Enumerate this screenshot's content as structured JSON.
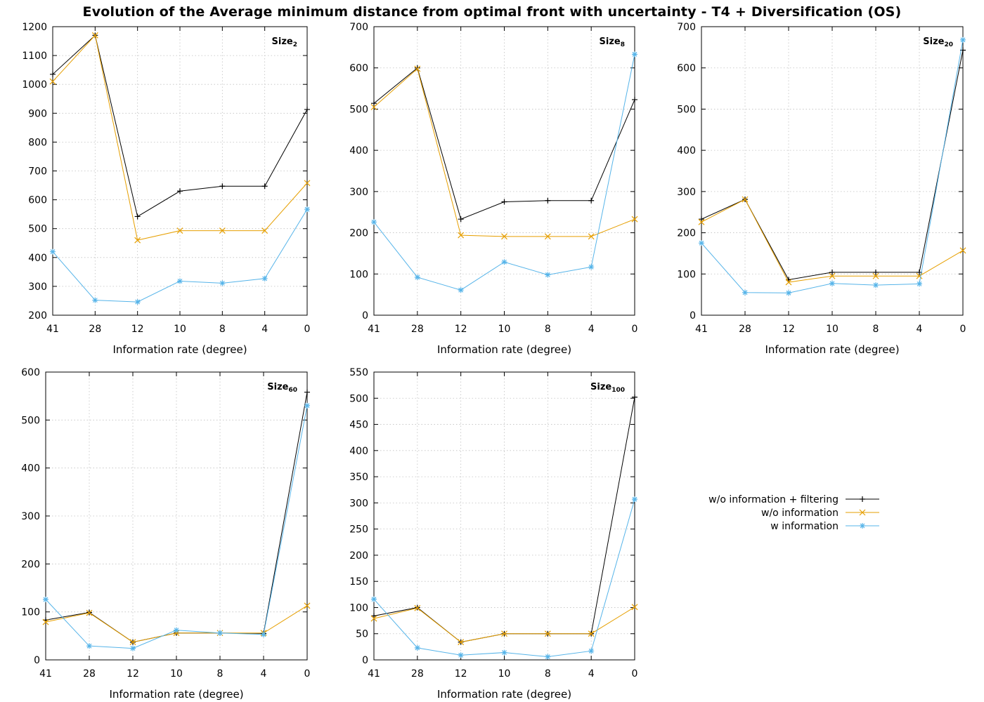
{
  "title": "Evolution of the Average minimum distance from optimal front with uncertainty  - T4  + Diversification (OS)",
  "colors": {
    "filtering": "#000000",
    "wo_info": "#E69F00",
    "w_info": "#56B4E9",
    "grid": "#c0c0c0"
  },
  "legend": [
    {
      "label": "w/o information + filtering",
      "color": "#000000",
      "marker": "plus"
    },
    {
      "label": "w/o information",
      "color": "#E69F00",
      "marker": "cross"
    },
    {
      "label": "w information",
      "color": "#56B4E9",
      "marker": "star"
    }
  ],
  "chart_data": [
    {
      "type": "line",
      "size_label": "Size",
      "size_sub": "2",
      "categories": [
        "41",
        "28",
        "12",
        "10",
        "8",
        "4",
        "0"
      ],
      "xlabel": "Information rate (degree)",
      "ylabel": "",
      "ylim": [
        200,
        1200
      ],
      "yticks": [
        200,
        300,
        400,
        500,
        600,
        700,
        800,
        900,
        1000,
        1100,
        1200
      ],
      "series": [
        {
          "name": "w/o information + filtering",
          "values": [
            1035,
            1170,
            542,
            630,
            647,
            647,
            913
          ]
        },
        {
          "name": "w/o information",
          "values": [
            1010,
            1170,
            460,
            493,
            493,
            493,
            658
          ]
        },
        {
          "name": "w information",
          "values": [
            420,
            252,
            246,
            318,
            311,
            327,
            567
          ]
        }
      ]
    },
    {
      "type": "line",
      "size_label": "Size",
      "size_sub": "8",
      "categories": [
        "41",
        "28",
        "12",
        "10",
        "8",
        "4",
        "0"
      ],
      "xlabel": "Information rate (degree)",
      "ylabel": "",
      "ylim": [
        0,
        700
      ],
      "yticks": [
        0,
        100,
        200,
        300,
        400,
        500,
        600,
        700
      ],
      "series": [
        {
          "name": "w/o information + filtering",
          "values": [
            514,
            600,
            233,
            275,
            278,
            278,
            523
          ]
        },
        {
          "name": "w/o information",
          "values": [
            505,
            598,
            194,
            191,
            191,
            191,
            233
          ]
        },
        {
          "name": "w information",
          "values": [
            226,
            92,
            61,
            129,
            98,
            117,
            633
          ]
        }
      ]
    },
    {
      "type": "line",
      "size_label": "Size",
      "size_sub": "20",
      "categories": [
        "41",
        "28",
        "12",
        "10",
        "8",
        "4",
        "0"
      ],
      "xlabel": "Information rate (degree)",
      "ylabel": "",
      "ylim": [
        0,
        700
      ],
      "yticks": [
        0,
        100,
        200,
        300,
        400,
        500,
        600,
        700
      ],
      "series": [
        {
          "name": "w/o information + filtering",
          "values": [
            233,
            281,
            86,
            104,
            104,
            104,
            643
          ]
        },
        {
          "name": "w/o information",
          "values": [
            226,
            281,
            80,
            95,
            95,
            95,
            157
          ]
        },
        {
          "name": "w information",
          "values": [
            175,
            55,
            54,
            77,
            73,
            76,
            668
          ]
        }
      ]
    },
    {
      "type": "line",
      "size_label": "Size",
      "size_sub": "60",
      "categories": [
        "41",
        "28",
        "12",
        "10",
        "8",
        "4",
        "0"
      ],
      "xlabel": "Information rate (degree)",
      "ylabel": "",
      "ylim": [
        0,
        600
      ],
      "yticks": [
        0,
        100,
        200,
        300,
        400,
        500,
        600
      ],
      "series": [
        {
          "name": "w/o information + filtering",
          "values": [
            83,
            99,
            37,
            56,
            56,
            55,
            558
          ]
        },
        {
          "name": "w/o information",
          "values": [
            79,
            98,
            37,
            56,
            56,
            56,
            113
          ]
        },
        {
          "name": "w information",
          "values": [
            126,
            29,
            24,
            62,
            56,
            53,
            530
          ]
        }
      ]
    },
    {
      "type": "line",
      "size_label": "Size",
      "size_sub": "100",
      "categories": [
        "41",
        "28",
        "12",
        "10",
        "8",
        "4",
        "0"
      ],
      "xlabel": "Information rate (degree)",
      "ylabel": "",
      "ylim": [
        0,
        550
      ],
      "yticks": [
        0,
        50,
        100,
        150,
        200,
        250,
        300,
        350,
        400,
        450,
        500,
        550
      ],
      "series": [
        {
          "name": "w/o information + filtering",
          "values": [
            84,
            100,
            34,
            50,
            50,
            50,
            502
          ]
        },
        {
          "name": "w/o information",
          "values": [
            79,
            99,
            34,
            50,
            50,
            50,
            101
          ]
        },
        {
          "name": "w information",
          "values": [
            116,
            23,
            9,
            14,
            6,
            17,
            307
          ]
        }
      ]
    }
  ]
}
